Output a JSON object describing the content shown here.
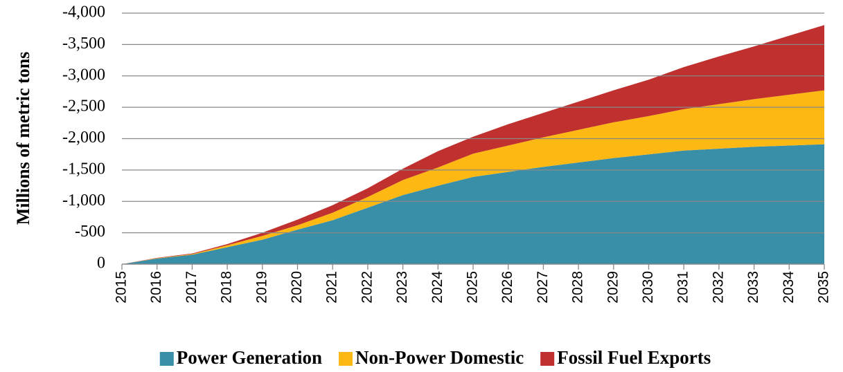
{
  "chart_data": {
    "type": "stacked_area",
    "y_label": "Millions of metric tons",
    "x": [
      2015,
      2016,
      2017,
      2018,
      2019,
      2020,
      2021,
      2022,
      2023,
      2024,
      2025,
      2026,
      2027,
      2028,
      2029,
      2030,
      2031,
      2032,
      2033,
      2034,
      2035
    ],
    "xlim": [
      2015,
      2035
    ],
    "series": [
      {
        "name": "Power Generation",
        "color": "#3a8fa8",
        "values": [
          0,
          -90,
          -150,
          -270,
          -390,
          -550,
          -700,
          -900,
          -1100,
          -1250,
          -1390,
          -1470,
          -1550,
          -1620,
          -1690,
          -1750,
          -1810,
          -1840,
          -1870,
          -1890,
          -1910
        ]
      },
      {
        "name": "Non-Power Domestic",
        "color": "#fdb813",
        "values": [
          0,
          -5,
          -10,
          -30,
          -60,
          -70,
          -120,
          -170,
          -240,
          -290,
          -370,
          -420,
          -470,
          -520,
          -570,
          -610,
          -660,
          -710,
          -760,
          -810,
          -860
        ]
      },
      {
        "name": "Fossil Fuel Exports",
        "color": "#c0302f",
        "values": [
          0,
          -5,
          -10,
          -20,
          -50,
          -90,
          -120,
          -140,
          -180,
          -260,
          -270,
          -340,
          -390,
          -450,
          -510,
          -580,
          -670,
          -760,
          -840,
          -940,
          -1040
        ]
      }
    ],
    "ylim": [
      0,
      -4000
    ],
    "yticks": [
      0,
      -500,
      {
        "value": -1000,
        "label": "-1,000"
      },
      {
        "value": -1500,
        "label": "-1,500"
      },
      {
        "value": -2000,
        "label": "-2,000"
      },
      {
        "value": -2500,
        "label": "-2,500"
      },
      {
        "value": -3000,
        "label": "-3,000"
      },
      {
        "value": -3500,
        "label": "-3,500"
      },
      {
        "value": -4000,
        "label": "-4,000"
      }
    ],
    "grid": true,
    "legend": "bottom"
  }
}
